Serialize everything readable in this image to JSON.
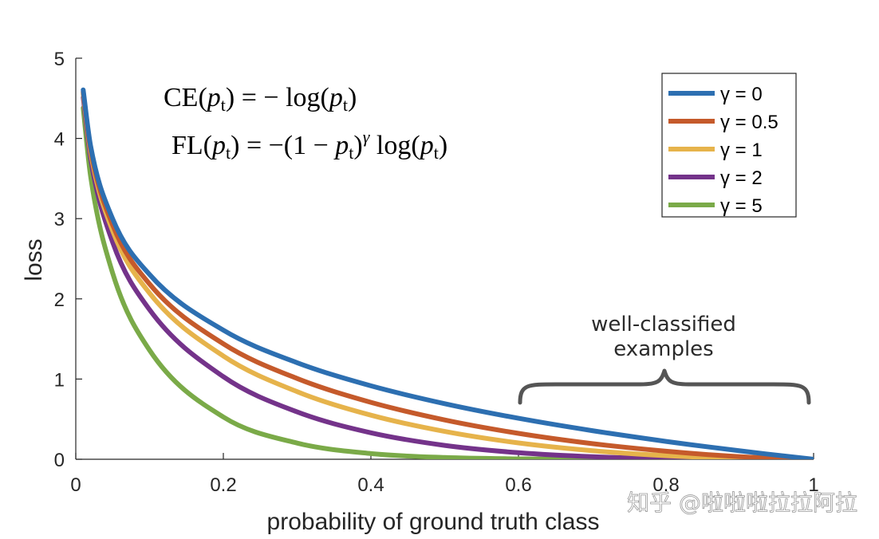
{
  "chart_data": {
    "type": "line",
    "xlabel": "probability of ground truth class",
    "ylabel": "loss",
    "xlim": [
      0,
      1
    ],
    "ylim": [
      0,
      5
    ],
    "xticks": [
      "0",
      "0.2",
      "0.4",
      "0.6",
      "0.8",
      "1"
    ],
    "yticks": [
      "0",
      "1",
      "2",
      "3",
      "4",
      "5"
    ],
    "grid": false,
    "legend_position": "top-right",
    "x": [
      0.01,
      0.02,
      0.05,
      0.1,
      0.2,
      0.3,
      0.4,
      0.5,
      0.6,
      0.7,
      0.8,
      0.9,
      1.0
    ],
    "series": [
      {
        "name": "γ = 0",
        "color": "#2d6fb1",
        "values": [
          4.605,
          3.912,
          2.996,
          2.303,
          1.609,
          1.204,
          0.916,
          0.693,
          0.511,
          0.357,
          0.223,
          0.105,
          0.0
        ]
      },
      {
        "name": "γ = 0.5",
        "color": "#c55a2b",
        "values": [
          4.582,
          3.873,
          2.92,
          2.185,
          1.439,
          1.007,
          0.71,
          0.49,
          0.323,
          0.195,
          0.1,
          0.033,
          0.0
        ]
      },
      {
        "name": "γ = 1",
        "color": "#e6b34b",
        "values": [
          4.559,
          3.834,
          2.846,
          2.072,
          1.287,
          0.843,
          0.55,
          0.347,
          0.204,
          0.107,
          0.045,
          0.011,
          0.0
        ]
      },
      {
        "name": "γ = 2",
        "color": "#74338a",
        "values": [
          4.513,
          3.757,
          2.704,
          1.865,
          1.03,
          0.59,
          0.33,
          0.173,
          0.082,
          0.032,
          0.009,
          0.001,
          0.0
        ]
      },
      {
        "name": "γ = 5",
        "color": "#7aaa48",
        "values": [
          4.38,
          3.536,
          2.318,
          1.36,
          0.527,
          0.202,
          0.071,
          0.022,
          0.005,
          0.001,
          0.0,
          0.0,
          0.0
        ]
      }
    ],
    "annotations": {
      "formula_ce": "CE(pt) = − log(pt)",
      "formula_fl": "FL(pt) = −(1 − pt)γ log(pt)",
      "bracket_label_line1": "well-classified",
      "bracket_label_line2": "examples",
      "bracket_range": [
        0.6,
        1.0
      ]
    }
  },
  "watermark": "知乎 @啦啦啦拉拉阿拉"
}
